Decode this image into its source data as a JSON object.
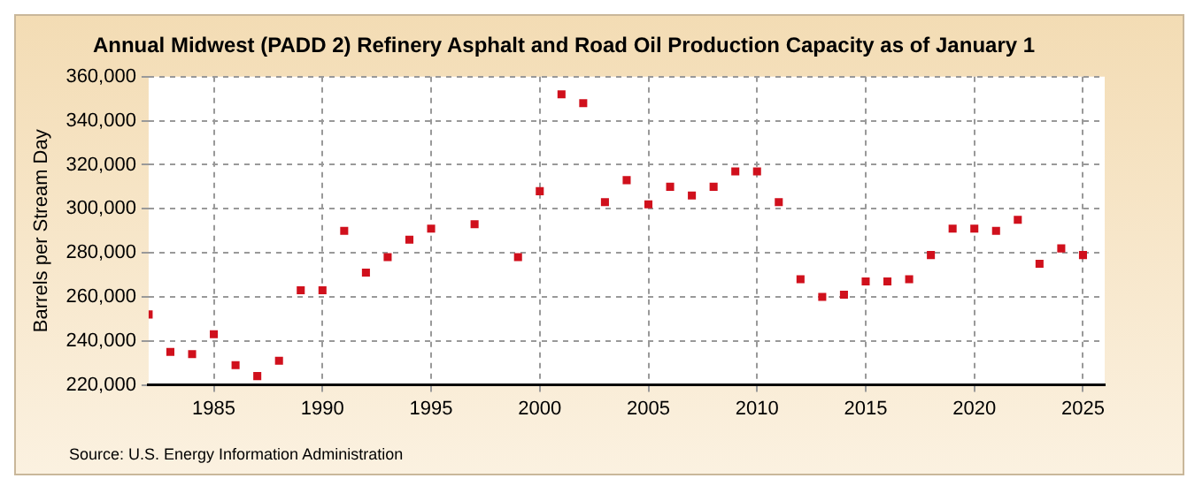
{
  "chart_data": {
    "type": "scatter",
    "title": "Annual Midwest (PADD 2) Refinery Asphalt and Road Oil Production Capacity as of January 1",
    "ylabel": "Barrels per Stream Day",
    "annotations": [
      "Source: U.S. Energy Information Administration"
    ],
    "x": [
      1982,
      1983,
      1984,
      1985,
      1986,
      1987,
      1988,
      1989,
      1990,
      1991,
      1992,
      1993,
      1994,
      1995,
      1997,
      1999,
      2000,
      2001,
      2002,
      2003,
      2004,
      2005,
      2006,
      2007,
      2008,
      2009,
      2010,
      2011,
      2012,
      2013,
      2014,
      2015,
      2016,
      2017,
      2018,
      2019,
      2020,
      2021,
      2022,
      2023,
      2024,
      2025
    ],
    "series": [
      {
        "color": "#d0101c",
        "values": [
          252000,
          235000,
          234000,
          243000,
          229000,
          224000,
          231000,
          263000,
          263000,
          290000,
          271000,
          278000,
          286000,
          291000,
          293000,
          278000,
          308000,
          352000,
          348000,
          303000,
          313000,
          302000,
          310000,
          306000,
          310000,
          317000,
          317000,
          303000,
          268000,
          260000,
          261000,
          267000,
          267000,
          268000,
          279000,
          291000,
          291000,
          290000,
          295000,
          275000,
          282000,
          279000
        ]
      }
    ],
    "xlim": [
      1982,
      2026
    ],
    "xticks": [
      1985,
      1990,
      1995,
      2000,
      2005,
      2010,
      2015,
      2020,
      2025
    ],
    "ylim": [
      220000,
      360000
    ],
    "yticks": [
      {
        "value": 220000,
        "label": "220,000"
      },
      {
        "value": 240000,
        "label": "240,000"
      },
      {
        "value": 260000,
        "label": "260,000"
      },
      {
        "value": 280000,
        "label": "280,000"
      },
      {
        "value": 300000,
        "label": "300,000"
      },
      {
        "value": 320000,
        "label": "320,000"
      },
      {
        "value": 340000,
        "label": "340,000"
      },
      {
        "value": 360000,
        "label": "360,000"
      }
    ],
    "grid": true,
    "marker": "square",
    "legend": false
  }
}
